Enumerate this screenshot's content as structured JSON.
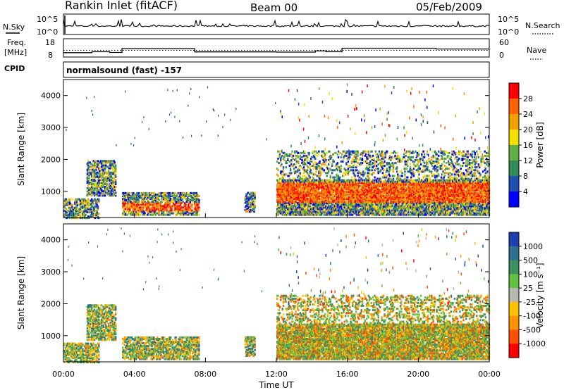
{
  "header": {
    "station": "Rankin Inlet (fitACF)",
    "beam": "Beam 00",
    "date": "05/Feb/2009"
  },
  "top_panels": {
    "nsky_label": "N.Sky",
    "nsky_ticks": [
      "10^5",
      "10^0"
    ],
    "nsearch_label": "N.Search",
    "freq_label_line1": "Freq.",
    "freq_label_line2": "[MHz]",
    "freq_ticks": [
      "18",
      "8"
    ],
    "nave_label": "Nave",
    "nave_ticks": [
      "60",
      "0"
    ],
    "cpid_label": "CPID",
    "cpid_text": "normalsound (fast) -157"
  },
  "chart_data": [
    {
      "type": "line",
      "name": "N.Sky / N.Search",
      "ylim_log10": [
        0,
        5
      ],
      "description_series": "noise counts per scan",
      "x": [
        "00:00",
        "24:00"
      ]
    },
    {
      "type": "line",
      "name": "Freq / Nave",
      "freq_ylim": [
        8,
        18
      ],
      "nave_ylim": [
        0,
        60
      ],
      "freq_steps": [
        {
          "start": 0.0,
          "end": 1.6,
          "value": 10.4
        },
        {
          "start": 1.6,
          "end": 2.6,
          "value": 10.9
        },
        {
          "start": 2.6,
          "end": 3.3,
          "value": 10.5
        },
        {
          "start": 3.3,
          "end": 7.4,
          "value": 12.6
        },
        {
          "start": 7.4,
          "end": 12.0,
          "value": 10.8
        },
        {
          "start": 12.0,
          "end": 14.2,
          "value": 10.7
        },
        {
          "start": 14.2,
          "end": 14.8,
          "value": 11.3
        },
        {
          "start": 14.8,
          "end": 15.7,
          "value": 10.9
        },
        {
          "start": 15.7,
          "end": 21.0,
          "value": 12.8
        },
        {
          "start": 21.0,
          "end": 24.0,
          "value": 12.4
        }
      ],
      "nave_dotted": 22
    },
    {
      "type": "heatmap",
      "name": "Power",
      "xlabel": "",
      "ylabel": "Slant Range [km]",
      "xlim_hours": [
        0,
        24
      ],
      "ylim": [
        180,
        4500
      ],
      "yticks": [
        "1000",
        "2000",
        "3000",
        "4000"
      ],
      "colorbar_label": "Power [dB]",
      "colorbar_ticks": [
        "4",
        "8",
        "12",
        "16",
        "20",
        "24",
        "28"
      ],
      "colorbar_colors": [
        "#0000ff",
        "#1f4fb0",
        "#2f8c5a",
        "#5fb040",
        "#f0e000",
        "#f0a000",
        "#ff6000",
        "#ff0000"
      ],
      "regions": [
        {
          "t0": 0.0,
          "t1": 2.0,
          "r0": 200,
          "r1": 800,
          "mean_db": 12
        },
        {
          "t0": 1.3,
          "t1": 2.9,
          "r0": 900,
          "r1": 2000,
          "mean_db": 14
        },
        {
          "t0": 3.3,
          "t1": 7.6,
          "r0": 300,
          "r1": 1000,
          "mean_db": 16
        },
        {
          "t0": 10.2,
          "t1": 10.8,
          "r0": 400,
          "r1": 1000,
          "mean_db": 12
        },
        {
          "t0": 12.0,
          "t1": 24.0,
          "r0": 300,
          "r1": 2300,
          "mean_db": 20
        }
      ]
    },
    {
      "type": "heatmap",
      "name": "Velocity",
      "xlabel": "Time UT",
      "ylabel": "Slant Range [km]",
      "xlim_hours": [
        0,
        24
      ],
      "ylim": [
        180,
        4500
      ],
      "xticks": [
        "00:00",
        "04:00",
        "08:00",
        "12:00",
        "16:00",
        "20:00",
        "00:00"
      ],
      "yticks": [
        "1000",
        "2000",
        "3000",
        "4000"
      ],
      "colorbar_label": "Velocity [m s⁻¹]",
      "colorbar_ticks": [
        "1000",
        "500",
        "100",
        "25",
        "-25",
        "-100",
        "-500",
        "-1000"
      ],
      "colorbar_colors": [
        "#1f3fb0",
        "#2f7090",
        "#3a9060",
        "#60c040",
        "#b8b8b0",
        "#ffc000",
        "#ff9000",
        "#ff5000",
        "#ff0000"
      ]
    }
  ]
}
